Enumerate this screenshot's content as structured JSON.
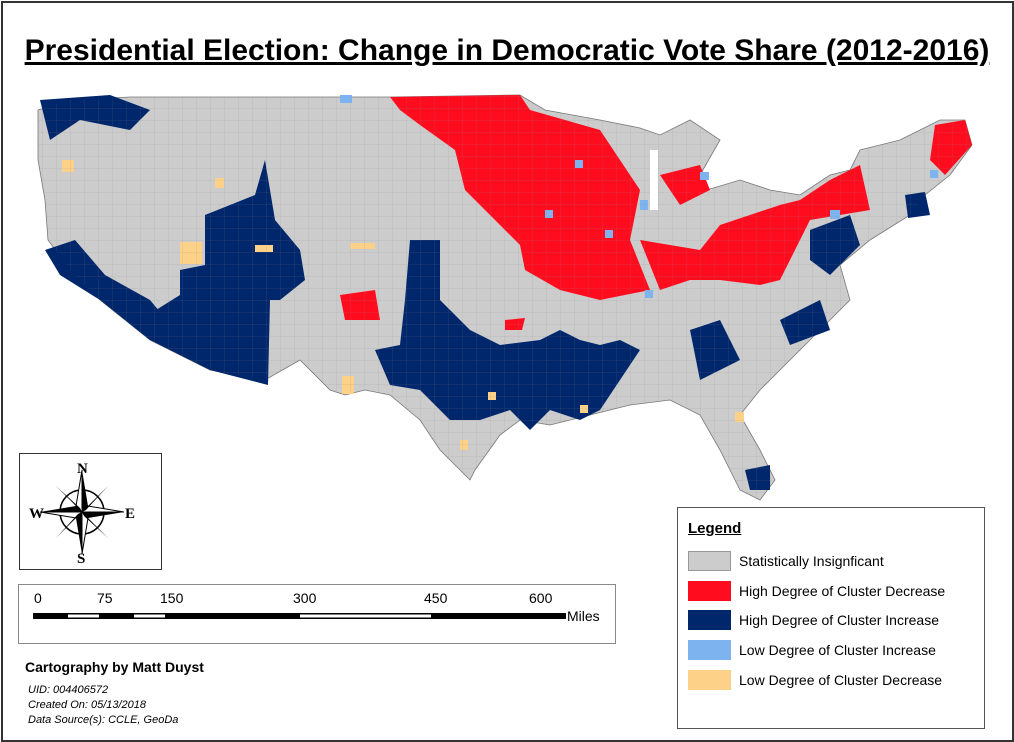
{
  "title": "Presidential Election: Change in Democratic Vote Share (2012-2016)",
  "compass": {
    "n": "N",
    "s": "S",
    "e": "E",
    "w": "W"
  },
  "scale_bar": {
    "ticks": [
      "0",
      "75",
      "150",
      "300",
      "450",
      "600"
    ],
    "unit": "Miles"
  },
  "credit": "Cartography by Matt Duyst",
  "meta": {
    "uid": "UID: 004406572",
    "created": "Created On: 05/13/2018",
    "source": "Data Source(s): CCLE, GeoDa"
  },
  "legend": {
    "title": "Legend",
    "items": [
      {
        "label": "Statistically Insignficant",
        "color": "#cccccc"
      },
      {
        "label": "High Degree of Cluster Decrease",
        "color": "#ff0d1f"
      },
      {
        "label": "High Degree of Cluster Increase",
        "color": "#00266b"
      },
      {
        "label": "Low Degree of Cluster Increase",
        "color": "#7db4f0"
      },
      {
        "label": "Low Degree of Cluster Decrease",
        "color": "#fdd187"
      }
    ]
  }
}
